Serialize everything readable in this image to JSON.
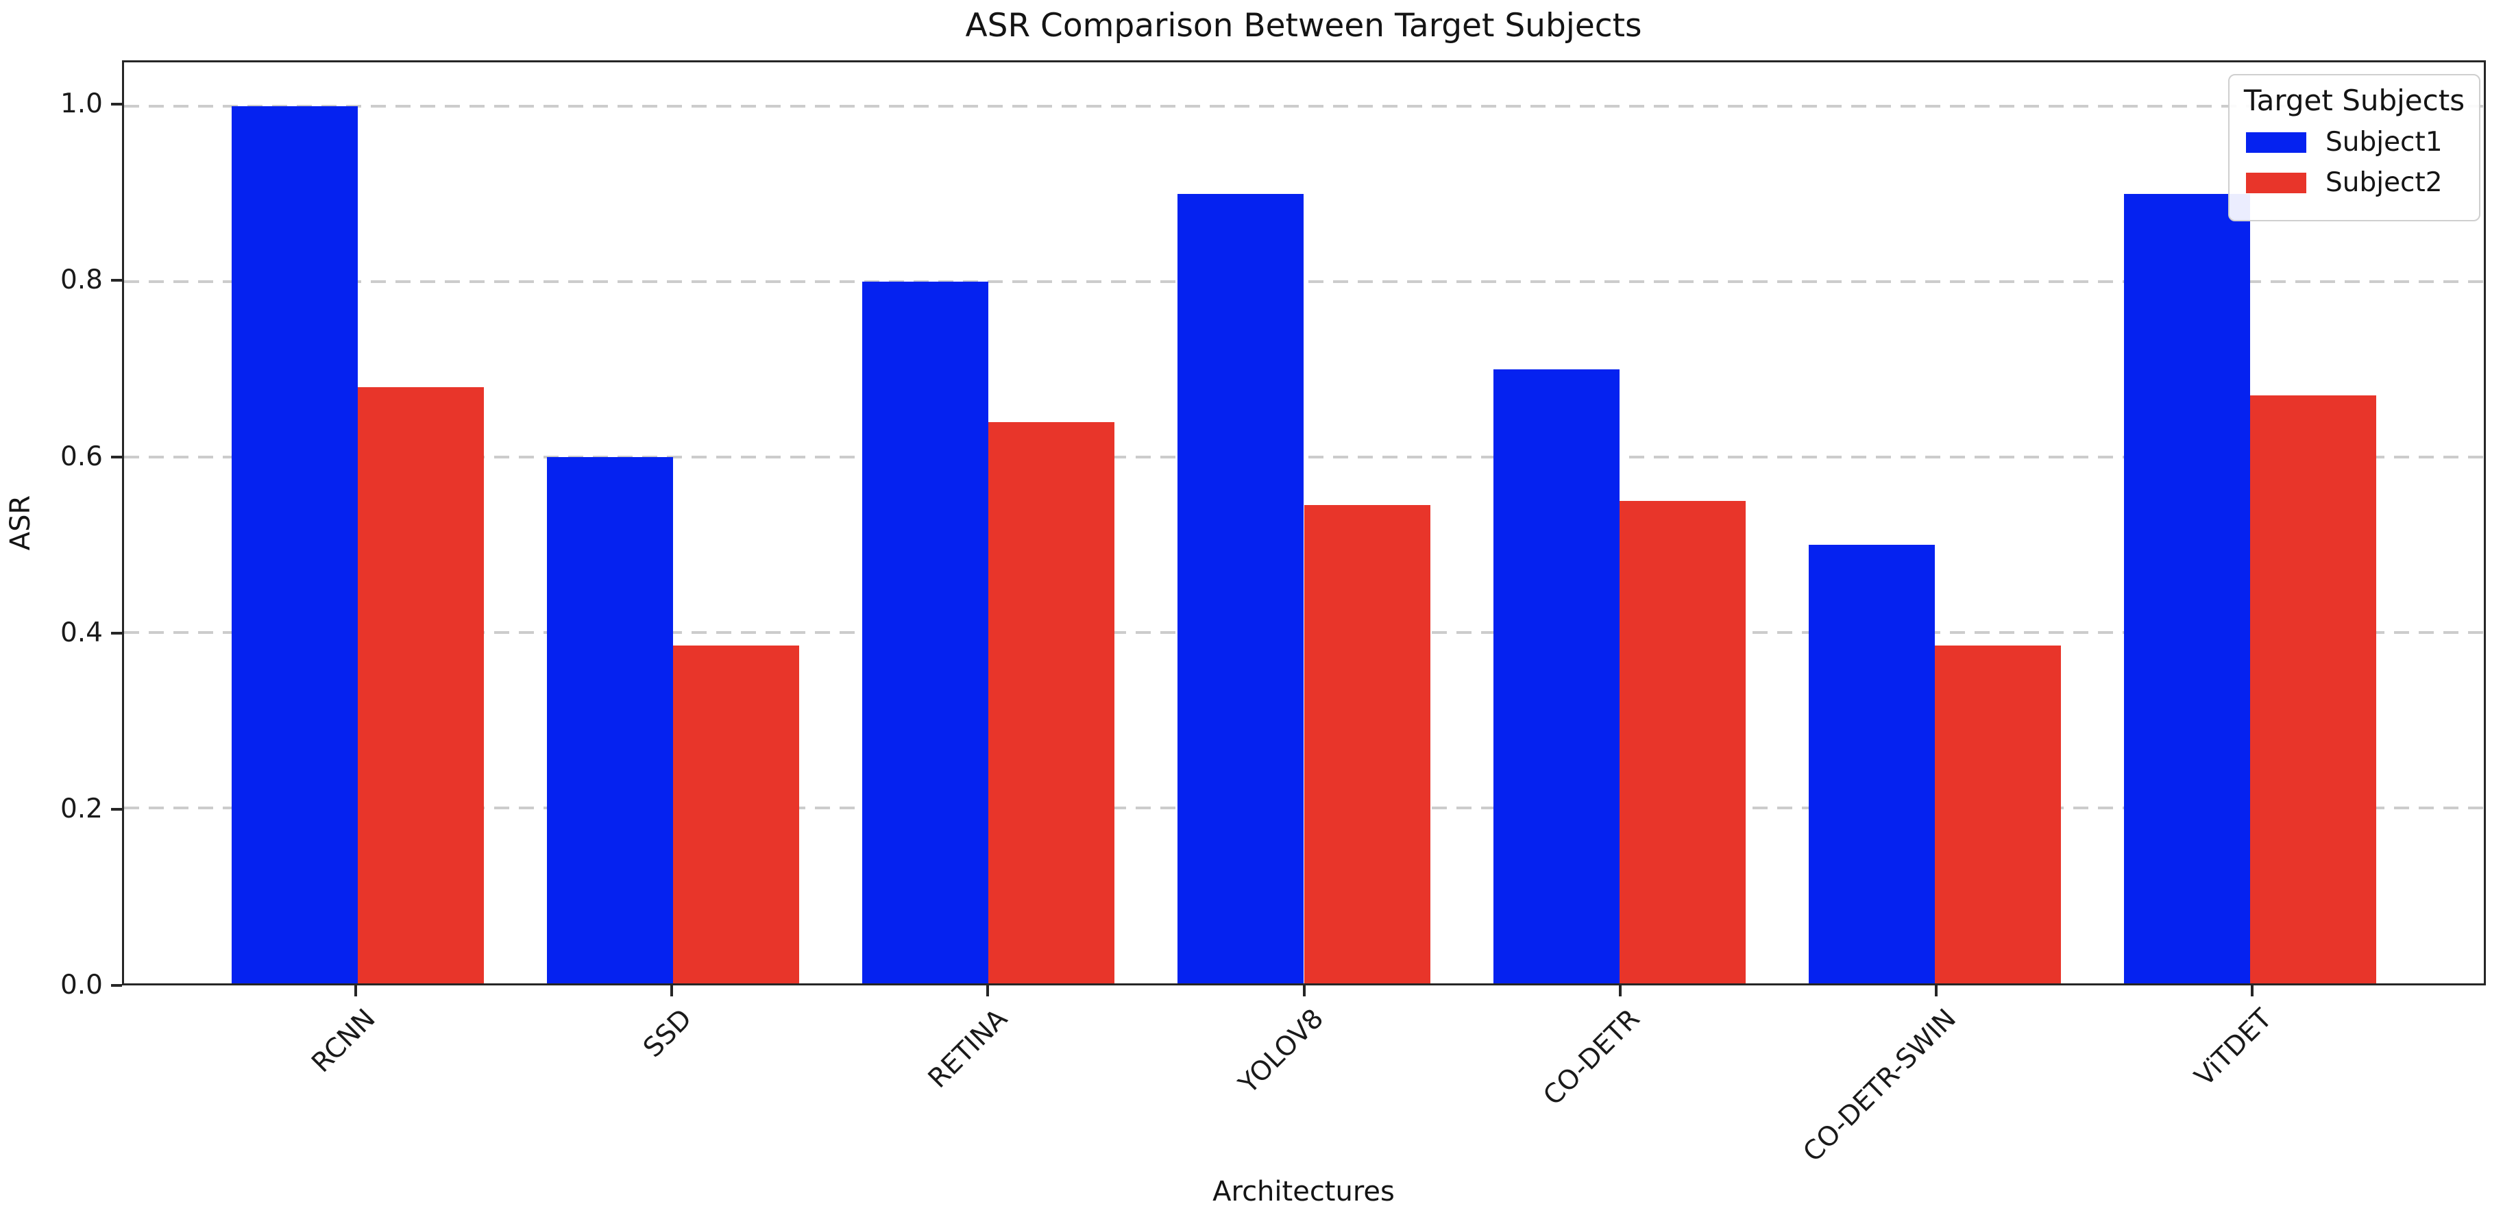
{
  "chart_data": {
    "type": "bar",
    "title": "ASR Comparison Between Target Subjects",
    "xlabel": "Architectures",
    "ylabel": "ASR",
    "categories": [
      "RCNN",
      "SSD",
      "RETINA",
      "YOLOV8",
      "CO-DETR",
      "CO-DETR-SWIN",
      "ViTDET"
    ],
    "series": [
      {
        "name": "Subject1",
        "color": "#0522f0",
        "values": [
          1.0,
          0.6,
          0.8,
          0.9,
          0.7,
          0.5,
          0.9
        ]
      },
      {
        "name": "Subject2",
        "color": "#e8352a",
        "values": [
          0.68,
          0.385,
          0.64,
          0.545,
          0.55,
          0.385,
          0.67
        ]
      }
    ],
    "ylim": [
      0,
      1.05
    ],
    "xlim": [
      -0.74,
      6.74
    ],
    "yticks": [
      0.0,
      0.2,
      0.4,
      0.6,
      0.8,
      1.0
    ],
    "grid": "horizontal-dashed",
    "bar_width_fraction": 0.4,
    "x_tick_rotation_deg": 45,
    "legend": {
      "title": "Target Subjects",
      "position": "upper-right"
    }
  },
  "colors": {
    "subject1": "#0522f0",
    "subject2": "#e8352a",
    "grid": "#cccccc",
    "spine": "#262626",
    "background": "#ffffff"
  }
}
